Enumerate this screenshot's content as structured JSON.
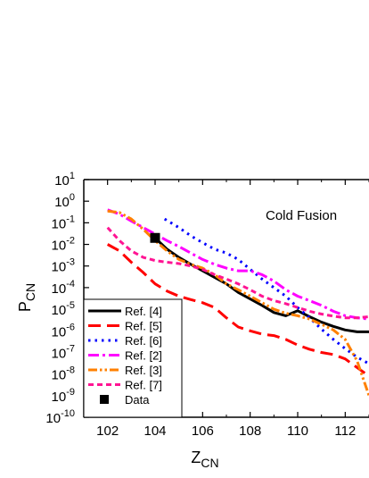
{
  "chart_data": {
    "type": "line",
    "xlabel": "Z",
    "xlabel_sub": "CN",
    "ylabel": "P",
    "ylabel_sub": "CN",
    "xlim": [
      101,
      113
    ],
    "ylim_log10": [
      -10,
      1
    ],
    "y_scale": "log",
    "x_ticks": [
      102,
      104,
      106,
      108,
      110,
      112
    ],
    "y_tick_exponents": [
      1,
      0,
      -1,
      -2,
      -3,
      -4,
      -5,
      -6,
      -7,
      -8,
      -9,
      -10
    ],
    "y_tick_base": "10",
    "annotation": "Cold Fusion",
    "legend_position": "bottom-left",
    "series": [
      {
        "name": "Ref. [4]",
        "color": "#000000",
        "dash": "solid",
        "points": [
          [
            104.0,
            0.02
          ],
          [
            104.5,
            0.006
          ],
          [
            105.0,
            0.0025
          ],
          [
            105.5,
            0.0012
          ],
          [
            106.0,
            0.0006
          ],
          [
            106.5,
            0.0003
          ],
          [
            107.0,
            0.00015
          ],
          [
            107.5,
            6e-05
          ],
          [
            108.0,
            3e-05
          ],
          [
            108.5,
            1.5e-05
          ],
          [
            109.0,
            7e-06
          ],
          [
            109.5,
            5e-06
          ],
          [
            110.0,
            8.5e-06
          ],
          [
            110.5,
            4.5e-06
          ],
          [
            111.0,
            2.5e-06
          ],
          [
            111.5,
            1.6e-06
          ],
          [
            112.0,
            1.1e-06
          ],
          [
            112.5,
            9e-07
          ],
          [
            113.0,
            9e-07
          ]
        ]
      },
      {
        "name": "Ref. [5]",
        "color": "#ff0000",
        "dash": "long-dash",
        "points": [
          [
            102.0,
            0.01
          ],
          [
            102.5,
            0.005
          ],
          [
            103.0,
            0.0015
          ],
          [
            103.5,
            0.0005
          ],
          [
            104.0,
            0.00015
          ],
          [
            104.5,
            7e-05
          ],
          [
            105.0,
            4e-05
          ],
          [
            105.5,
            2.8e-05
          ],
          [
            106.0,
            2e-05
          ],
          [
            106.5,
            1.2e-05
          ],
          [
            107.0,
            4e-06
          ],
          [
            107.5,
            1.5e-06
          ],
          [
            108.0,
            1e-06
          ],
          [
            108.5,
            7e-07
          ],
          [
            109.0,
            6e-07
          ],
          [
            109.5,
            4e-07
          ],
          [
            110.0,
            2.2e-07
          ],
          [
            110.5,
            1.4e-07
          ],
          [
            111.0,
            1e-07
          ],
          [
            111.5,
            8e-08
          ],
          [
            112.0,
            5e-08
          ],
          [
            112.5,
            2e-08
          ],
          [
            113.0,
            8e-09
          ]
        ]
      },
      {
        "name": "Ref. [6]",
        "color": "#0000ff",
        "dash": "dot",
        "points": [
          [
            104.4,
            0.15
          ],
          [
            105.0,
            0.06
          ],
          [
            105.5,
            0.025
          ],
          [
            106.0,
            0.012
          ],
          [
            106.5,
            0.006
          ],
          [
            107.0,
            0.004
          ],
          [
            107.5,
            0.002
          ],
          [
            108.0,
            0.0007
          ],
          [
            108.5,
            0.00025
          ],
          [
            109.0,
            0.0001
          ],
          [
            109.5,
            4e-05
          ],
          [
            110.0,
            1.2e-05
          ],
          [
            110.5,
            4e-06
          ],
          [
            111.0,
            1.2e-06
          ],
          [
            111.5,
            4e-07
          ],
          [
            112.0,
            1.5e-07
          ],
          [
            112.5,
            6e-08
          ],
          [
            113.0,
            3e-08
          ]
        ]
      },
      {
        "name": "Ref. [2]",
        "color": "#ff00ff",
        "dash": "dash-dot",
        "points": [
          [
            102.0,
            0.4
          ],
          [
            102.5,
            0.25
          ],
          [
            103.0,
            0.12
          ],
          [
            103.5,
            0.06
          ],
          [
            104.0,
            0.03
          ],
          [
            104.5,
            0.015
          ],
          [
            105.0,
            0.008
          ],
          [
            105.5,
            0.004
          ],
          [
            106.0,
            0.002
          ],
          [
            106.5,
            0.0012
          ],
          [
            107.0,
            0.0008
          ],
          [
            107.5,
            0.0006
          ],
          [
            108.0,
            0.0006
          ],
          [
            108.5,
            0.0004
          ],
          [
            109.0,
            0.0002
          ],
          [
            109.5,
            8e-05
          ],
          [
            110.0,
            4e-05
          ],
          [
            110.5,
            2.5e-05
          ],
          [
            111.0,
            1.5e-05
          ],
          [
            111.5,
            8e-06
          ],
          [
            112.0,
            5e-06
          ],
          [
            112.5,
            4e-06
          ],
          [
            113.0,
            3.5e-06
          ]
        ]
      },
      {
        "name": "Ref. [3]",
        "color": "#ff8000",
        "dash": "dash-dot-dot",
        "points": [
          [
            102.0,
            0.35
          ],
          [
            102.5,
            0.3
          ],
          [
            103.0,
            0.15
          ],
          [
            103.5,
            0.05
          ],
          [
            104.0,
            0.015
          ],
          [
            104.5,
            0.005
          ],
          [
            105.0,
            0.002
          ],
          [
            105.5,
            0.0012
          ],
          [
            106.0,
            0.0008
          ],
          [
            106.5,
            0.0004
          ],
          [
            107.0,
            0.00015
          ],
          [
            107.5,
            8e-05
          ],
          [
            108.0,
            4e-05
          ],
          [
            108.5,
            2e-05
          ],
          [
            109.0,
            1e-05
          ],
          [
            109.5,
            6.5e-06
          ],
          [
            110.0,
            5e-06
          ],
          [
            110.5,
            3.5e-06
          ],
          [
            111.0,
            2e-06
          ],
          [
            111.5,
            1.1e-06
          ],
          [
            112.0,
            4e-07
          ],
          [
            112.5,
            4e-08
          ],
          [
            113.0,
            1e-09
          ]
        ]
      },
      {
        "name": "Ref. [7]",
        "color": "#ff1493",
        "dash": "short-dash",
        "points": [
          [
            102.0,
            0.06
          ],
          [
            102.5,
            0.015
          ],
          [
            103.0,
            0.005
          ],
          [
            103.5,
            0.0025
          ],
          [
            104.0,
            0.0018
          ],
          [
            104.5,
            0.0015
          ],
          [
            105.0,
            0.0013
          ],
          [
            105.5,
            0.001
          ],
          [
            106.0,
            0.0007
          ],
          [
            106.5,
            0.0004
          ],
          [
            107.0,
            0.00025
          ],
          [
            107.5,
            0.00015
          ],
          [
            108.0,
            8e-05
          ],
          [
            108.5,
            4e-05
          ],
          [
            109.0,
            2.5e-05
          ],
          [
            109.5,
            1.8e-05
          ],
          [
            110.0,
            1.2e-05
          ],
          [
            110.5,
            8e-06
          ],
          [
            111.0,
            6e-06
          ],
          [
            111.5,
            4.8e-06
          ],
          [
            112.0,
            4e-06
          ],
          [
            112.5,
            4e-06
          ],
          [
            113.0,
            4.5e-06
          ]
        ]
      }
    ],
    "data_points": {
      "name": "Data",
      "marker": "square",
      "color": "#000000",
      "points": [
        [
          104.0,
          0.02
        ]
      ]
    }
  }
}
